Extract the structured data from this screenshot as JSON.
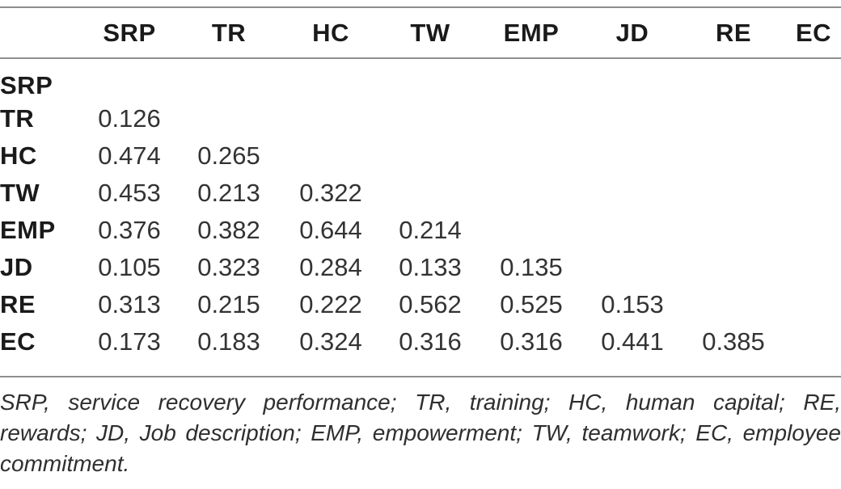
{
  "table": {
    "corner_label": "",
    "columns": [
      "SRP",
      "TR",
      "HC",
      "TW",
      "EMP",
      "JD",
      "RE",
      "EC"
    ],
    "rows": [
      {
        "label": "SRP",
        "values": []
      },
      {
        "label": "TR",
        "values": [
          "0.126"
        ]
      },
      {
        "label": "HC",
        "values": [
          "0.474",
          "0.265"
        ]
      },
      {
        "label": "TW",
        "values": [
          "0.453",
          "0.213",
          "0.322"
        ]
      },
      {
        "label": "EMP",
        "values": [
          "0.376",
          "0.382",
          "0.644",
          "0.214"
        ]
      },
      {
        "label": "JD",
        "values": [
          "0.105",
          "0.323",
          "0.284",
          "0.133",
          "0.135"
        ]
      },
      {
        "label": "RE",
        "values": [
          "0.313",
          "0.215",
          "0.222",
          "0.562",
          "0.525",
          "0.153"
        ]
      },
      {
        "label": "EC",
        "values": [
          "0.173",
          "0.183",
          "0.324",
          "0.316",
          "0.316",
          "0.441",
          "0.385"
        ]
      }
    ]
  },
  "footnote": {
    "full_text": "SRP, service recovery performance; TR, training; HC, human capital; RE, rewards; JD, Job description; EMP, empowerment; TW, teamwork; EC, employee commitment.",
    "lines": [
      "SRP, service recovery performance; TR, training; HC, human capital; RE,",
      "rewards; JD, Job description; EMP, empowerment; TW, teamwork; EC, employee",
      "commitment."
    ]
  },
  "colors": {
    "rule": "#8e8e8e",
    "heading_text": "#1a1a1a",
    "value_text": "#333333",
    "footnote_text": "#2f2f2f",
    "background": "#ffffff"
  }
}
